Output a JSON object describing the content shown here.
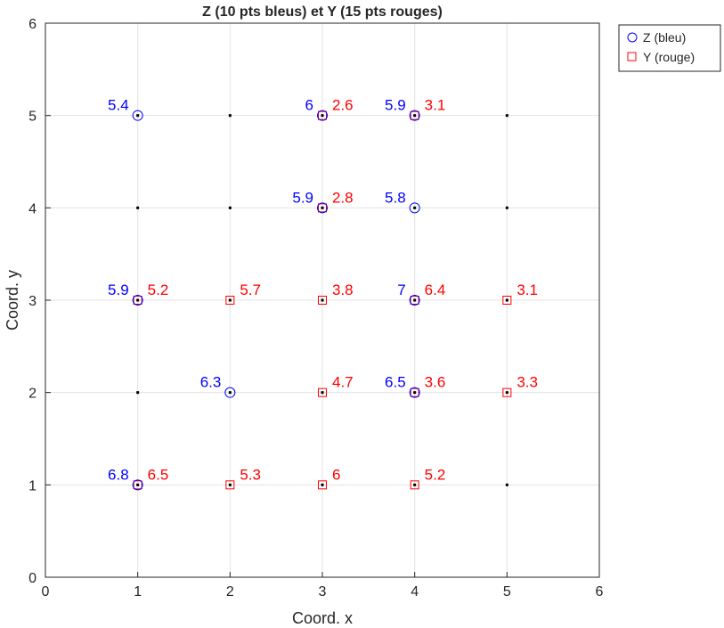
{
  "chart_data": {
    "type": "scatter",
    "title": "Z (10 pts bleus) et Y (15 pts rouges)",
    "xlabel": "Coord. x",
    "ylabel": "Coord. y",
    "xlim": [
      0,
      6
    ],
    "ylim": [
      0,
      6
    ],
    "xticks": [
      "0",
      "1",
      "2",
      "3",
      "4",
      "5",
      "6"
    ],
    "yticks": [
      "0",
      "1",
      "2",
      "3",
      "4",
      "5",
      "6"
    ],
    "grid": true,
    "legend_placement": "outside-top-right",
    "grid_points": {
      "color": "#000000",
      "x": [
        1,
        2,
        3,
        4,
        5
      ],
      "y": [
        1,
        2,
        3,
        4,
        5
      ]
    },
    "series": [
      {
        "name": "Z (bleu)",
        "marker": "circle",
        "color": "#0000ff",
        "points": [
          {
            "x": 1,
            "y": 5,
            "v": 5.4
          },
          {
            "x": 3,
            "y": 5,
            "v": 6
          },
          {
            "x": 4,
            "y": 5,
            "v": 5.9
          },
          {
            "x": 3,
            "y": 4,
            "v": 5.9
          },
          {
            "x": 4,
            "y": 4,
            "v": 5.8
          },
          {
            "x": 1,
            "y": 3,
            "v": 5.9
          },
          {
            "x": 4,
            "y": 3,
            "v": 7
          },
          {
            "x": 2,
            "y": 2,
            "v": 6.3
          },
          {
            "x": 4,
            "y": 2,
            "v": 6.5
          },
          {
            "x": 1,
            "y": 1,
            "v": 6.8
          }
        ]
      },
      {
        "name": "Y (rouge)",
        "marker": "square",
        "color": "#ff0000",
        "points": [
          {
            "x": 3,
            "y": 5,
            "v": 2.6
          },
          {
            "x": 4,
            "y": 5,
            "v": 3.1
          },
          {
            "x": 3,
            "y": 4,
            "v": 2.8
          },
          {
            "x": 1,
            "y": 3,
            "v": 5.2
          },
          {
            "x": 2,
            "y": 3,
            "v": 5.7
          },
          {
            "x": 3,
            "y": 3,
            "v": 3.8
          },
          {
            "x": 4,
            "y": 3,
            "v": 6.4
          },
          {
            "x": 5,
            "y": 3,
            "v": 3.1
          },
          {
            "x": 3,
            "y": 2,
            "v": 4.7
          },
          {
            "x": 4,
            "y": 2,
            "v": 3.6
          },
          {
            "x": 5,
            "y": 2,
            "v": 3.3
          },
          {
            "x": 1,
            "y": 1,
            "v": 6.5
          },
          {
            "x": 2,
            "y": 1,
            "v": 5.3
          },
          {
            "x": 3,
            "y": 1,
            "v": 6
          },
          {
            "x": 4,
            "y": 1,
            "v": 5.2
          }
        ]
      }
    ]
  }
}
